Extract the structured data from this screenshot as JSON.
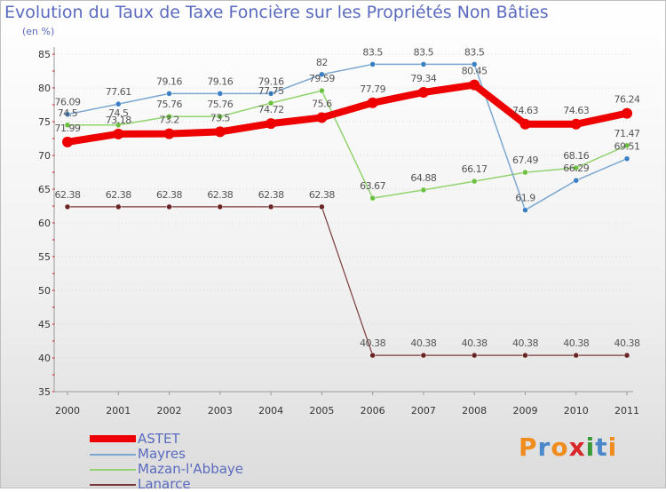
{
  "title": "Evolution du Taux de Taxe Foncière sur les Propriétés Non Bâties",
  "unit": "(en %)",
  "logo": {
    "text": "Proxiti",
    "letters": [
      "P",
      "r",
      "o",
      "x",
      "i",
      "t",
      "i"
    ],
    "colors": [
      "#f08c1e",
      "#4a88c9",
      "#f08c1e",
      "#d9262a",
      "#3a9a3a",
      "#4a88c9",
      "#f08c1e"
    ]
  },
  "chart_data": {
    "type": "line",
    "title": "Evolution du Taux de Taxe Foncière sur les Propriétés Non Bâties",
    "xlabel": "",
    "ylabel": "(en %)",
    "ylim": [
      35,
      85
    ],
    "yticks": [
      35,
      40,
      45,
      50,
      55,
      60,
      65,
      70,
      75,
      80,
      85
    ],
    "categories": [
      "2000",
      "2001",
      "2002",
      "2003",
      "2004",
      "2005",
      "2006",
      "2007",
      "2008",
      "2009",
      "2010",
      "2011"
    ],
    "series": [
      {
        "name": "ASTET",
        "color": "#ee0000",
        "width": 8,
        "marker": 6,
        "values": [
          71.99,
          73.18,
          73.2,
          73.5,
          74.72,
          75.6,
          77.79,
          79.34,
          80.45,
          74.63,
          74.63,
          76.24
        ],
        "labels": [
          "71.99",
          "73.18",
          "73.2",
          "73.5",
          "74.72",
          "75.6",
          "77.79",
          "79.34",
          "80.45",
          "74.63",
          "74.63",
          "76.24"
        ]
      },
      {
        "name": "Mayres",
        "color": "#7ba7d0",
        "width": 1.5,
        "marker": 3,
        "dot": "#3a7fc4",
        "values": [
          76.09,
          77.61,
          79.16,
          79.16,
          79.16,
          82,
          83.5,
          83.5,
          83.5,
          61.9,
          66.29,
          69.51
        ],
        "labels": [
          "76.09",
          "77.61",
          "79.16",
          "79.16",
          "79.16",
          "82",
          "83.5",
          "83.5",
          "83.5",
          "61.9",
          "66.29",
          "69.51"
        ]
      },
      {
        "name": "Mazan-l'Abbaye",
        "color": "#92d36e",
        "width": 1.5,
        "marker": 3,
        "dot": "#6cc040",
        "values": [
          74.5,
          74.5,
          75.76,
          75.76,
          77.75,
          79.59,
          63.67,
          64.88,
          66.17,
          67.49,
          68.16,
          71.47
        ],
        "labels": [
          "74.5",
          "74.5",
          "75.76",
          "75.76",
          "77.75",
          "79.59",
          "63.67",
          "64.88",
          "66.17",
          "67.49",
          "68.16",
          "71.47"
        ]
      },
      {
        "name": "Lanarce",
        "color": "#7a3a3a",
        "width": 1.2,
        "marker": 3,
        "dot": "#6b2424",
        "values": [
          62.38,
          62.38,
          62.38,
          62.38,
          62.38,
          62.38,
          40.38,
          40.38,
          40.38,
          40.38,
          40.38,
          40.38
        ],
        "labels": [
          "62.38",
          "62.38",
          "62.38",
          "62.38",
          "62.38",
          "62.38",
          "40.38",
          "40.38",
          "40.38",
          "40.38",
          "40.38",
          "40.38"
        ]
      }
    ],
    "legend": [
      "ASTET",
      "Mayres",
      "Mazan-l'Abbaye",
      "Lanarce"
    ]
  }
}
